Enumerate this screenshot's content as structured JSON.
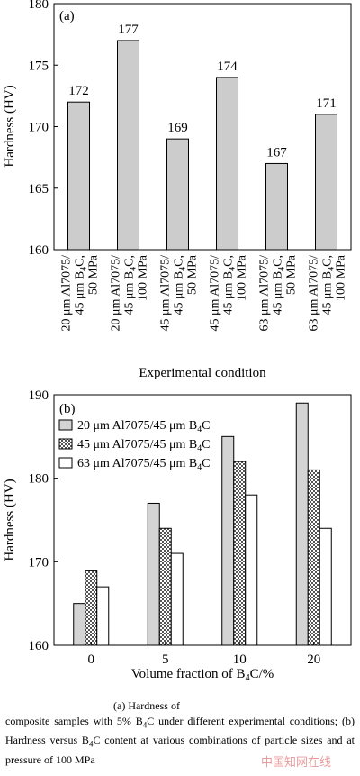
{
  "chart_data": [
    {
      "type": "bar",
      "panel_label": "(a)",
      "ylabel": "Hardness (HV)",
      "xlabel": "Experimental condition",
      "ylim": [
        160,
        180
      ],
      "yticks": [
        "160",
        "165",
        "170",
        "175",
        "180"
      ],
      "categories": [
        [
          "20 μm Al7075/",
          "45 μm B4C,",
          "50 MPa"
        ],
        [
          "20 μm Al7075/",
          "45 μm B4C,",
          "100 MPa"
        ],
        [
          "45 μm Al7075/",
          "45 μm B4C,",
          "50 MPa"
        ],
        [
          "45 μm Al7075/",
          "45 μm B4C,",
          "100 MPa"
        ],
        [
          "63 μm Al7075/",
          "45 μm B4C,",
          "50 MPa"
        ],
        [
          "63 μm Al7075/",
          "45 μm B4C,",
          "100 MPa"
        ]
      ],
      "values": [
        172,
        177,
        169,
        174,
        167,
        171
      ],
      "data_labels": [
        "172",
        "177",
        "169",
        "174",
        "167",
        "171"
      ],
      "bar_color": "#cccccc"
    },
    {
      "type": "bar",
      "panel_label": "(b)",
      "ylabel": "Hardness (HV)",
      "xlabel": "Volume fraction of B4C/%",
      "ylim": [
        160,
        190
      ],
      "yticks": [
        "160",
        "170",
        "180",
        "190"
      ],
      "categories": [
        "0",
        "5",
        "10",
        "20"
      ],
      "legend_position": "top-left",
      "series": [
        {
          "name": "20 μm Al7075/45 μm B4C",
          "values": [
            165,
            177,
            185,
            189
          ],
          "fill": "light-gray"
        },
        {
          "name": "45 μm Al7075/45 μm B4C",
          "values": [
            169,
            174,
            182,
            181
          ],
          "fill": "checkered"
        },
        {
          "name": "63 μm Al7075/45 μm B4C",
          "values": [
            167,
            171,
            178,
            174
          ],
          "fill": "white"
        }
      ]
    }
  ],
  "caption": {
    "line1": "(a) Hardness of",
    "text": "composite samples with 5% B4C under different experimental conditions; (b) Hardness versus B4C content at various combinations of particle sizes and at pressure of 100 MPa"
  },
  "watermark": "中国知网在线"
}
